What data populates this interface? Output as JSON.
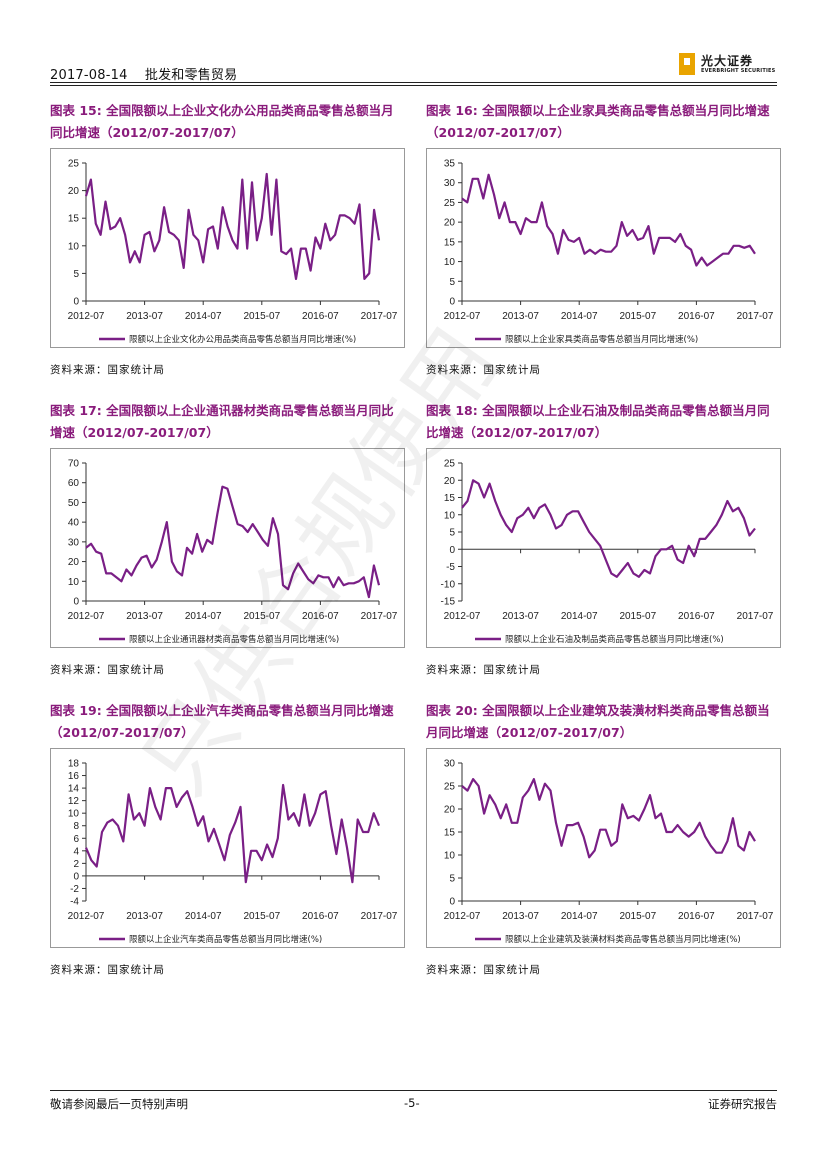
{
  "header": {
    "date": "2017-08-14",
    "industry": "批发和零售贸易",
    "logo_cn": "光大证券",
    "logo_en": "EVERBRIGHT SECURITIES"
  },
  "footer": {
    "disclaimer": "敬请参阅最后一页特别声明",
    "page": "-5-",
    "doc_type": "证券研究报告"
  },
  "watermark_text": "只供合规使用",
  "colors": {
    "series": "#7a1f86",
    "title": "#8a1c7c"
  },
  "figures": [
    {
      "title": "图表 15: 全国限额以上企业文化办公用品类商品零售总额当月同比增速（2012/07-2017/07）",
      "source": "资料来源：国家统计局",
      "chart_data": {
        "type": "line",
        "title": "",
        "xlabel": "",
        "ylabel": "",
        "x_ticks": [
          "2012-07",
          "2013-07",
          "2014-07",
          "2015-07",
          "2016-07",
          "2017-07"
        ],
        "y_ticks": [
          "0",
          "5",
          "10",
          "15",
          "20",
          "25"
        ],
        "ylim": [
          0,
          25
        ],
        "legend": "限额以上企业文化办公用品类商品零售总额当月同比增速(%)",
        "values": [
          19,
          22,
          14,
          12,
          18,
          13,
          13.5,
          15,
          12,
          7,
          9,
          7,
          12,
          12.5,
          9,
          11,
          17,
          12.5,
          12,
          11,
          6,
          16.5,
          12,
          11,
          7,
          13,
          13.5,
          9.5,
          17,
          13.5,
          11,
          9.5,
          22,
          9.5,
          21.5,
          11,
          15,
          23,
          12,
          22,
          9,
          8.5,
          9.5,
          4,
          9.5,
          9.5,
          5.5,
          11.5,
          9.5,
          14,
          11,
          12,
          15.5,
          15.5,
          15,
          14,
          17.5,
          4,
          5,
          16.5,
          11
        ]
      }
    },
    {
      "title": "图表 16: 全国限额以上企业家具类商品零售总额当月同比增速（2012/07-2017/07）",
      "source": "资料来源：国家统计局",
      "chart_data": {
        "type": "line",
        "title": "",
        "xlabel": "",
        "ylabel": "",
        "x_ticks": [
          "2012-07",
          "2013-07",
          "2014-07",
          "2015-07",
          "2016-07",
          "2017-07"
        ],
        "y_ticks": [
          "0",
          "5",
          "10",
          "15",
          "20",
          "25",
          "30",
          "35"
        ],
        "ylim": [
          0,
          35
        ],
        "legend": "限额以上企业家具类商品零售总额当月同比增速(%)",
        "values": [
          26,
          25,
          31,
          31,
          26,
          32,
          27,
          21,
          25,
          20,
          20,
          17,
          21,
          20,
          20,
          25,
          19,
          17,
          12,
          18,
          15.5,
          15,
          16,
          12,
          13,
          12,
          13,
          12.5,
          12.5,
          14,
          20,
          16.5,
          18,
          15.5,
          16,
          19,
          12,
          16,
          16,
          16,
          15,
          17,
          14,
          13,
          9,
          11,
          9,
          10,
          11,
          12,
          12,
          14,
          14,
          13.5,
          14,
          12
        ]
      }
    },
    {
      "title": "图表 17: 全国限额以上企业通讯器材类商品零售总额当月同比增速（2012/07-2017/07）",
      "source": "资料来源：国家统计局",
      "chart_data": {
        "type": "line",
        "title": "",
        "xlabel": "",
        "ylabel": "",
        "x_ticks": [
          "2012-07",
          "2013-07",
          "2014-07",
          "2015-07",
          "2016-07",
          "2017-07"
        ],
        "y_ticks": [
          "0",
          "10",
          "20",
          "30",
          "40",
          "50",
          "60",
          "70"
        ],
        "ylim": [
          0,
          70
        ],
        "legend": "限额以上企业通讯器材类商品零售总额当月同比增速(%)",
        "values": [
          27,
          29,
          25,
          24,
          14,
          14,
          12,
          10,
          16,
          13,
          18,
          22,
          23,
          17,
          21,
          30,
          40,
          20,
          15,
          13,
          27,
          24,
          34,
          25,
          31,
          29,
          44,
          58,
          57,
          48,
          39,
          38,
          35,
          39,
          35,
          31,
          28,
          42,
          34,
          8,
          6,
          14,
          19,
          15,
          11,
          9,
          13,
          12,
          12,
          7,
          12,
          8,
          9,
          9,
          10,
          12,
          2,
          18,
          8
        ]
      }
    },
    {
      "title": "图表 18: 全国限额以上企业石油及制品类商品零售总额当月同比增速（2012/07-2017/07）",
      "source": "资料来源：国家统计局",
      "chart_data": {
        "type": "line",
        "title": "",
        "xlabel": "",
        "ylabel": "",
        "x_ticks": [
          "2012-07",
          "2013-07",
          "2014-07",
          "2015-07",
          "2016-07",
          "2017-07"
        ],
        "y_ticks": [
          "-15",
          "-10",
          "-5",
          "0",
          "5",
          "10",
          "15",
          "20",
          "25"
        ],
        "ylim": [
          -15,
          25
        ],
        "legend": "限额以上企业石油及制品类商品零售总额当月同比增速(%)",
        "values": [
          12,
          14,
          20,
          19,
          15,
          19,
          14,
          10,
          7,
          5,
          9,
          10,
          12,
          9,
          12,
          13,
          10,
          6,
          7,
          10,
          11,
          11,
          8,
          5,
          3,
          1,
          -3,
          -7,
          -8,
          -6,
          -4,
          -7,
          -8,
          -6,
          -7,
          -2,
          0,
          0,
          1,
          -3,
          -4,
          1,
          -2,
          3,
          3,
          5,
          7,
          10,
          14,
          11,
          12,
          9,
          4,
          6
        ]
      }
    },
    {
      "title": "图表 19: 全国限额以上企业汽车类商品零售总额当月同比增速（2012/07-2017/07）",
      "source": "资料来源：国家统计局",
      "chart_data": {
        "type": "line",
        "title": "",
        "xlabel": "",
        "ylabel": "",
        "x_ticks": [
          "2012-07",
          "2013-07",
          "2014-07",
          "2015-07",
          "2016-07",
          "2017-07"
        ],
        "y_ticks": [
          "-4",
          "-2",
          "0",
          "2",
          "4",
          "6",
          "8",
          "10",
          "12",
          "14",
          "16",
          "18"
        ],
        "ylim": [
          -4,
          18
        ],
        "legend": "限额以上企业汽车类商品零售总额当月同比增速(%)",
        "values": [
          4.5,
          2.5,
          1.5,
          7,
          8.5,
          9,
          8,
          5.5,
          13,
          9,
          10,
          8,
          14,
          11,
          9,
          14,
          14,
          11,
          12.5,
          13.5,
          11,
          8,
          9.5,
          5.5,
          7.5,
          5,
          2.5,
          6.5,
          8.5,
          11,
          -1,
          4,
          4,
          2.5,
          5,
          3,
          6,
          14.5,
          9,
          10,
          8,
          13,
          8,
          10,
          13,
          13.5,
          8,
          3.5,
          9,
          4.5,
          -1,
          9,
          7,
          7,
          10,
          8
        ]
      }
    },
    {
      "title": "图表 20: 全国限额以上企业建筑及装潢材料类商品零售总额当月同比增速（2012/07-2017/07）",
      "source": "资料来源：国家统计局",
      "chart_data": {
        "type": "line",
        "title": "",
        "xlabel": "",
        "ylabel": "",
        "x_ticks": [
          "2012-07",
          "2013-07",
          "2014-07",
          "2015-07",
          "2016-07",
          "2017-07"
        ],
        "y_ticks": [
          "0",
          "5",
          "10",
          "15",
          "20",
          "25",
          "30"
        ],
        "ylim": [
          0,
          30
        ],
        "legend": "限额以上企业建筑及装潢材料类商品零售总额当月同比增速(%)",
        "values": [
          25,
          24,
          26.5,
          25,
          19,
          23,
          21,
          18,
          21,
          17,
          17,
          22.5,
          24,
          26.5,
          22,
          25.5,
          24,
          17,
          12,
          16.5,
          16.5,
          17,
          14,
          9.5,
          11,
          15.5,
          15.5,
          12,
          13,
          21,
          18,
          18.5,
          17.5,
          20,
          23,
          18,
          19,
          15,
          15,
          16.5,
          15,
          14,
          15,
          17,
          14,
          12,
          10.5,
          10.5,
          13,
          18,
          12,
          11,
          15,
          13
        ]
      }
    }
  ]
}
